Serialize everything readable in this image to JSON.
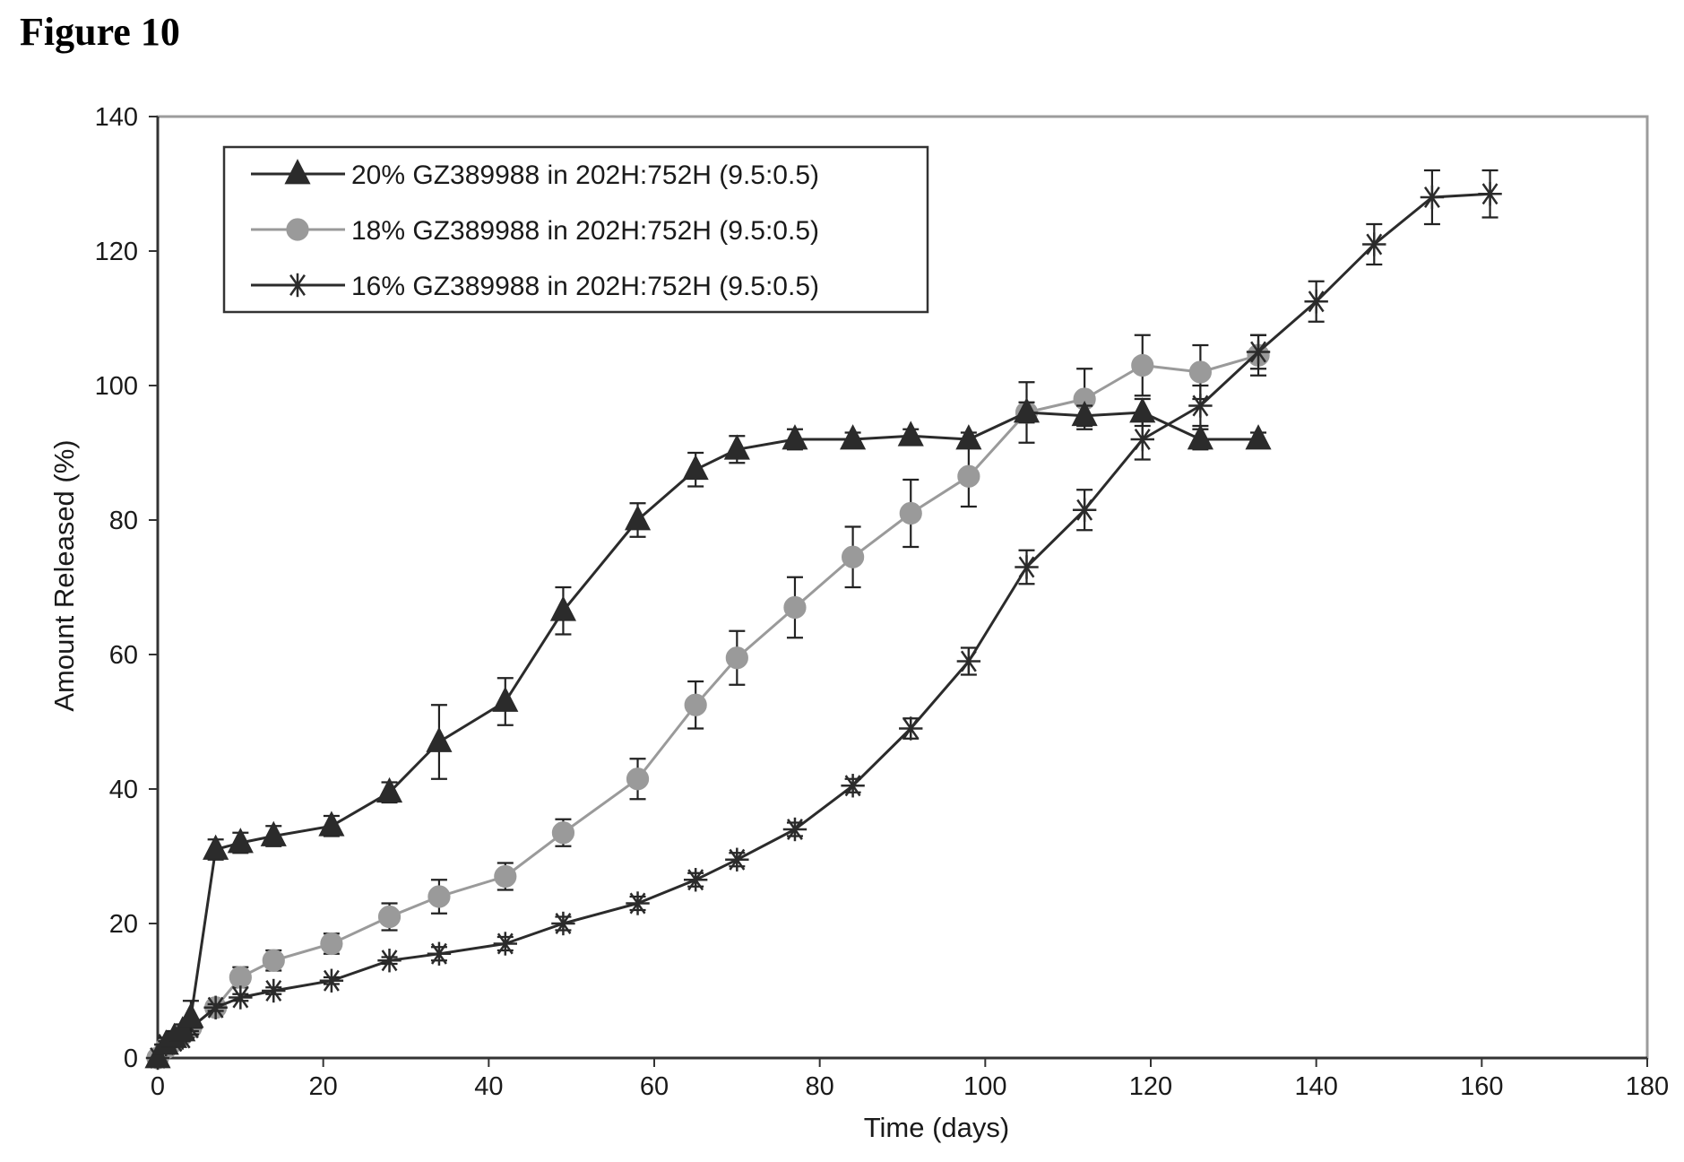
{
  "figure_title": "Figure 10",
  "chart_data": {
    "type": "line",
    "title": "",
    "xlabel": "Time (days)",
    "ylabel": "Amount Released (%)",
    "xlim": [
      0,
      180
    ],
    "ylim": [
      0,
      140
    ],
    "xticks": [
      0,
      20,
      40,
      60,
      80,
      100,
      120,
      140,
      160,
      180
    ],
    "yticks": [
      0,
      20,
      40,
      60,
      80,
      100,
      120,
      140
    ],
    "grid": false,
    "legend_position": "top-left",
    "series": [
      {
        "name": "20% GZ389988 in 202H:752H (9.5:0.5)",
        "marker": "triangle",
        "color": "#2b2b2b",
        "x": [
          0,
          1,
          2,
          3,
          4,
          7,
          10,
          14,
          21,
          28,
          34,
          42,
          49,
          58,
          65,
          70,
          77,
          84,
          91,
          98,
          105,
          112,
          119,
          126,
          133
        ],
        "y": [
          0,
          2,
          3,
          4,
          6,
          31,
          32,
          33,
          34.5,
          39.5,
          47,
          53,
          66.5,
          80,
          87.5,
          90.5,
          92,
          92,
          92.5,
          92,
          96,
          95.5,
          96,
          92,
          92
        ],
        "err": [
          0,
          1,
          1,
          1,
          2.5,
          1.5,
          1.5,
          1.5,
          1.5,
          1.5,
          5.5,
          3.5,
          3.5,
          2.5,
          2.5,
          2,
          1.5,
          1,
          1,
          1,
          1.5,
          1.5,
          2,
          1.5,
          1
        ]
      },
      {
        "name": "18% GZ389988 in 202H:752H (9.5:0.5)",
        "marker": "circle",
        "color": "#9a9a9a",
        "x": [
          0,
          1,
          2,
          3,
          4,
          7,
          10,
          14,
          21,
          28,
          34,
          42,
          49,
          58,
          65,
          70,
          77,
          84,
          91,
          98,
          105,
          112,
          119,
          126,
          133
        ],
        "y": [
          0,
          1.5,
          2.5,
          3.5,
          4.5,
          7.5,
          12,
          14.5,
          17,
          21,
          24,
          27,
          33.5,
          41.5,
          52.5,
          59.5,
          67,
          74.5,
          81,
          86.5,
          96,
          98,
          103,
          102,
          104.5
        ],
        "err": [
          0,
          0.5,
          0.5,
          0.5,
          1,
          1,
          1.5,
          1.5,
          1.5,
          2,
          2.5,
          2,
          2,
          3,
          3.5,
          4,
          4.5,
          4.5,
          5,
          4.5,
          4.5,
          4.5,
          4.5,
          4,
          3
        ]
      },
      {
        "name": "16% GZ389988 in 202H:752H (9.5:0.5)",
        "marker": "star",
        "color": "#2b2b2b",
        "x": [
          0,
          1,
          2,
          3,
          4,
          7,
          10,
          14,
          21,
          28,
          34,
          42,
          49,
          58,
          65,
          70,
          77,
          84,
          91,
          98,
          105,
          112,
          119,
          126,
          133,
          140,
          147,
          154,
          161
        ],
        "y": [
          0,
          2,
          2.5,
          3,
          4.5,
          7.5,
          9,
          10,
          11.5,
          14.5,
          15.5,
          17,
          20,
          23,
          26.5,
          29.5,
          34,
          40.5,
          49,
          59,
          73,
          81.5,
          92,
          97,
          105,
          112.5,
          121,
          128,
          128.5
        ],
        "err": [
          0,
          0.5,
          0.5,
          0.5,
          0.5,
          0.5,
          0.5,
          0.5,
          0.5,
          0.5,
          1,
          1,
          1,
          1,
          1,
          1,
          1,
          1,
          1.5,
          2,
          2.5,
          3,
          3,
          3,
          2.5,
          3,
          3,
          4,
          3.5
        ]
      }
    ]
  }
}
